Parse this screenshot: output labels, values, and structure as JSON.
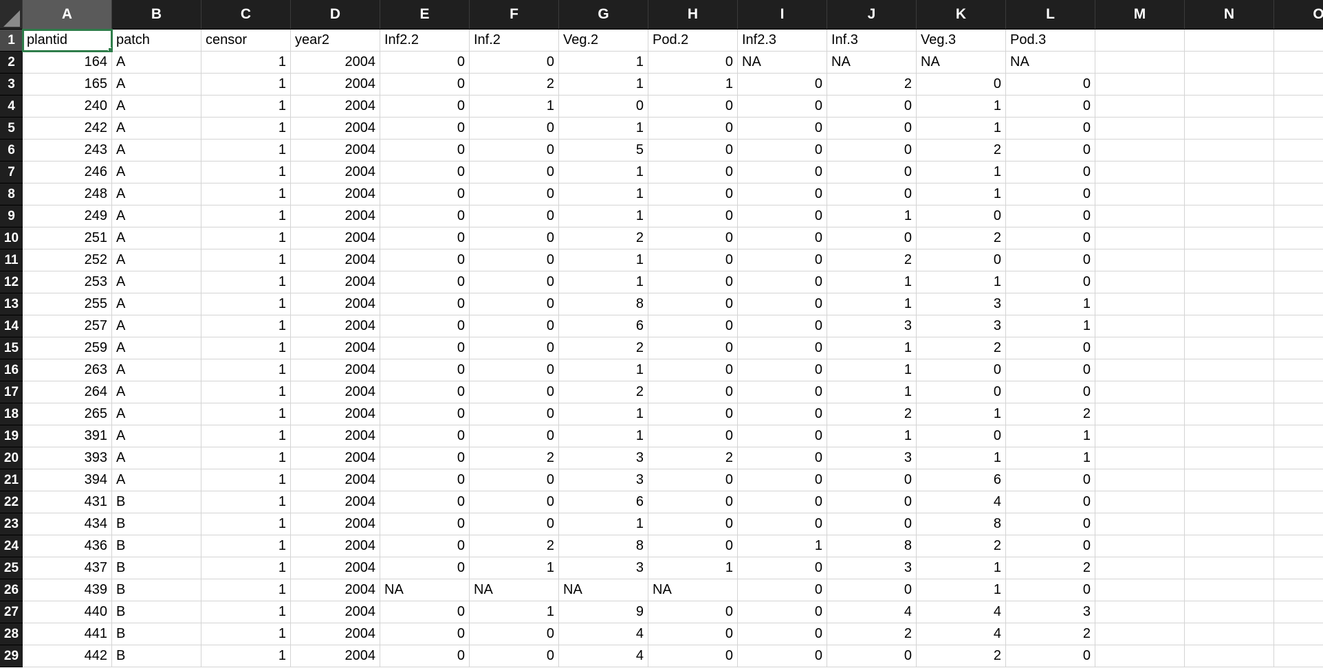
{
  "columns": [
    "A",
    "B",
    "C",
    "D",
    "E",
    "F",
    "G",
    "H",
    "I",
    "J",
    "K",
    "L",
    "M",
    "N",
    "O"
  ],
  "row_numbers": [
    "1",
    "2",
    "3",
    "4",
    "5",
    "6",
    "7",
    "8",
    "9",
    "10",
    "11",
    "12",
    "13",
    "14",
    "15",
    "16",
    "17",
    "18",
    "19",
    "20",
    "21",
    "22",
    "23",
    "24",
    "25",
    "26",
    "27",
    "28",
    "29"
  ],
  "rows": [
    [
      "plantid",
      "patch",
      "censor",
      "year2",
      "Inf2.2",
      "Inf.2",
      "Veg.2",
      "Pod.2",
      "Inf2.3",
      "Inf.3",
      "Veg.3",
      "Pod.3",
      "",
      "",
      ""
    ],
    [
      "164",
      "A",
      "1",
      "2004",
      "0",
      "0",
      "1",
      "0",
      "NA",
      "NA",
      "NA",
      "NA",
      "",
      "",
      ""
    ],
    [
      "165",
      "A",
      "1",
      "2004",
      "0",
      "2",
      "1",
      "1",
      "0",
      "2",
      "0",
      "0",
      "",
      "",
      ""
    ],
    [
      "240",
      "A",
      "1",
      "2004",
      "0",
      "1",
      "0",
      "0",
      "0",
      "0",
      "1",
      "0",
      "",
      "",
      ""
    ],
    [
      "242",
      "A",
      "1",
      "2004",
      "0",
      "0",
      "1",
      "0",
      "0",
      "0",
      "1",
      "0",
      "",
      "",
      ""
    ],
    [
      "243",
      "A",
      "1",
      "2004",
      "0",
      "0",
      "5",
      "0",
      "0",
      "0",
      "2",
      "0",
      "",
      "",
      ""
    ],
    [
      "246",
      "A",
      "1",
      "2004",
      "0",
      "0",
      "1",
      "0",
      "0",
      "0",
      "1",
      "0",
      "",
      "",
      ""
    ],
    [
      "248",
      "A",
      "1",
      "2004",
      "0",
      "0",
      "1",
      "0",
      "0",
      "0",
      "1",
      "0",
      "",
      "",
      ""
    ],
    [
      "249",
      "A",
      "1",
      "2004",
      "0",
      "0",
      "1",
      "0",
      "0",
      "1",
      "0",
      "0",
      "",
      "",
      ""
    ],
    [
      "251",
      "A",
      "1",
      "2004",
      "0",
      "0",
      "2",
      "0",
      "0",
      "0",
      "2",
      "0",
      "",
      "",
      ""
    ],
    [
      "252",
      "A",
      "1",
      "2004",
      "0",
      "0",
      "1",
      "0",
      "0",
      "2",
      "0",
      "0",
      "",
      "",
      ""
    ],
    [
      "253",
      "A",
      "1",
      "2004",
      "0",
      "0",
      "1",
      "0",
      "0",
      "1",
      "1",
      "0",
      "",
      "",
      ""
    ],
    [
      "255",
      "A",
      "1",
      "2004",
      "0",
      "0",
      "8",
      "0",
      "0",
      "1",
      "3",
      "1",
      "",
      "",
      ""
    ],
    [
      "257",
      "A",
      "1",
      "2004",
      "0",
      "0",
      "6",
      "0",
      "0",
      "3",
      "3",
      "1",
      "",
      "",
      ""
    ],
    [
      "259",
      "A",
      "1",
      "2004",
      "0",
      "0",
      "2",
      "0",
      "0",
      "1",
      "2",
      "0",
      "",
      "",
      ""
    ],
    [
      "263",
      "A",
      "1",
      "2004",
      "0",
      "0",
      "1",
      "0",
      "0",
      "1",
      "0",
      "0",
      "",
      "",
      ""
    ],
    [
      "264",
      "A",
      "1",
      "2004",
      "0",
      "0",
      "2",
      "0",
      "0",
      "1",
      "0",
      "0",
      "",
      "",
      ""
    ],
    [
      "265",
      "A",
      "1",
      "2004",
      "0",
      "0",
      "1",
      "0",
      "0",
      "2",
      "1",
      "2",
      "",
      "",
      ""
    ],
    [
      "391",
      "A",
      "1",
      "2004",
      "0",
      "0",
      "1",
      "0",
      "0",
      "1",
      "0",
      "1",
      "",
      "",
      ""
    ],
    [
      "393",
      "A",
      "1",
      "2004",
      "0",
      "2",
      "3",
      "2",
      "0",
      "3",
      "1",
      "1",
      "",
      "",
      ""
    ],
    [
      "394",
      "A",
      "1",
      "2004",
      "0",
      "0",
      "3",
      "0",
      "0",
      "0",
      "6",
      "0",
      "",
      "",
      ""
    ],
    [
      "431",
      "B",
      "1",
      "2004",
      "0",
      "0",
      "6",
      "0",
      "0",
      "0",
      "4",
      "0",
      "",
      "",
      ""
    ],
    [
      "434",
      "B",
      "1",
      "2004",
      "0",
      "0",
      "1",
      "0",
      "0",
      "0",
      "8",
      "0",
      "",
      "",
      ""
    ],
    [
      "436",
      "B",
      "1",
      "2004",
      "0",
      "2",
      "8",
      "0",
      "1",
      "8",
      "2",
      "0",
      "",
      "",
      ""
    ],
    [
      "437",
      "B",
      "1",
      "2004",
      "0",
      "1",
      "3",
      "1",
      "0",
      "3",
      "1",
      "2",
      "",
      "",
      ""
    ],
    [
      "439",
      "B",
      "1",
      "2004",
      "NA",
      "NA",
      "NA",
      "NA",
      "0",
      "0",
      "1",
      "0",
      "",
      "",
      ""
    ],
    [
      "440",
      "B",
      "1",
      "2004",
      "0",
      "1",
      "9",
      "0",
      "0",
      "4",
      "4",
      "3",
      "",
      "",
      ""
    ],
    [
      "441",
      "B",
      "1",
      "2004",
      "0",
      "0",
      "4",
      "0",
      "0",
      "2",
      "4",
      "2",
      "",
      "",
      ""
    ],
    [
      "442",
      "B",
      "1",
      "2004",
      "0",
      "0",
      "4",
      "0",
      "0",
      "0",
      "2",
      "0",
      "",
      "",
      ""
    ]
  ],
  "selection": {
    "column": "A",
    "row": "1",
    "cell": "A1"
  },
  "colors": {
    "header_bg": "#1f1f1f",
    "header_selected_bg": "#5a5a5a",
    "gridline": "#d4d4d4",
    "active_cell_border": "#2e7d4a"
  }
}
